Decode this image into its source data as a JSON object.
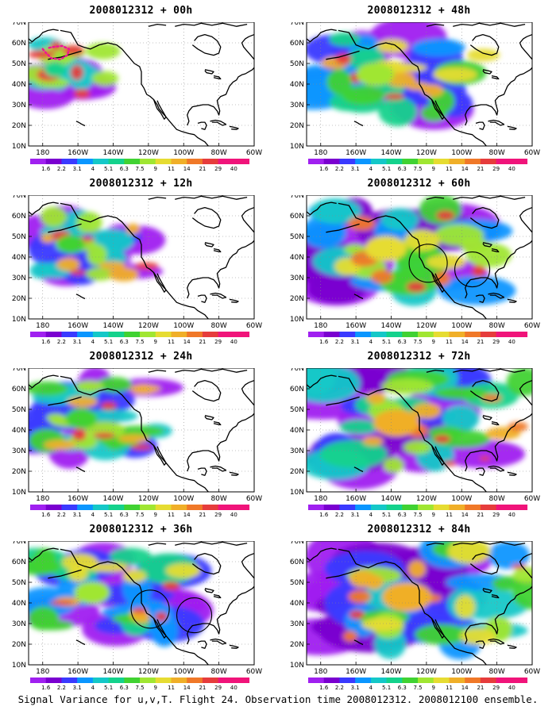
{
  "caption": "Signal Variance for u,v,T. Flight 24. Observation time 2008012312. 2008012100 ensemble.",
  "latitude_labels": [
    "70N",
    "60N",
    "50N",
    "40N",
    "30N",
    "20N",
    "10N"
  ],
  "longitude_labels": [
    "180",
    "160W",
    "140W",
    "120W",
    "100W",
    "80W",
    "60W"
  ],
  "colorbar": {
    "levels": [
      "1.6",
      "2.2",
      "3.1",
      "4",
      "5.1",
      "6.3",
      "7.5",
      "9",
      "11",
      "14",
      "21",
      "29",
      "40"
    ],
    "colors": [
      "#a020f0",
      "#7a00d0",
      "#3a3aff",
      "#0a96ff",
      "#14c8c8",
      "#14d28c",
      "#40d232",
      "#a0e632",
      "#e6dc32",
      "#f0af28",
      "#f07828",
      "#e63c3c",
      "#f0147a"
    ]
  },
  "panels": [
    {
      "title": "2008012312 + 00h",
      "lead_hours": 0,
      "circles": false,
      "track": true,
      "intensity": 0.15
    },
    {
      "title": "2008012312 + 48h",
      "lead_hours": 48,
      "circles": false,
      "track": false,
      "intensity": 0.55
    },
    {
      "title": "2008012312 + 12h",
      "lead_hours": 12,
      "circles": false,
      "track": false,
      "intensity": 0.3
    },
    {
      "title": "2008012312 + 60h",
      "lead_hours": 60,
      "circles": true,
      "track": false,
      "intensity": 0.65
    },
    {
      "title": "2008012312 + 24h",
      "lead_hours": 24,
      "circles": false,
      "track": false,
      "intensity": 0.4
    },
    {
      "title": "2008012312 + 72h",
      "lead_hours": 72,
      "circles": false,
      "track": false,
      "intensity": 0.75
    },
    {
      "title": "2008012312 + 36h",
      "lead_hours": 36,
      "circles": true,
      "track": false,
      "intensity": 0.5
    },
    {
      "title": "2008012312 + 84h",
      "lead_hours": 84,
      "circles": false,
      "track": false,
      "intensity": 0.85
    }
  ]
}
